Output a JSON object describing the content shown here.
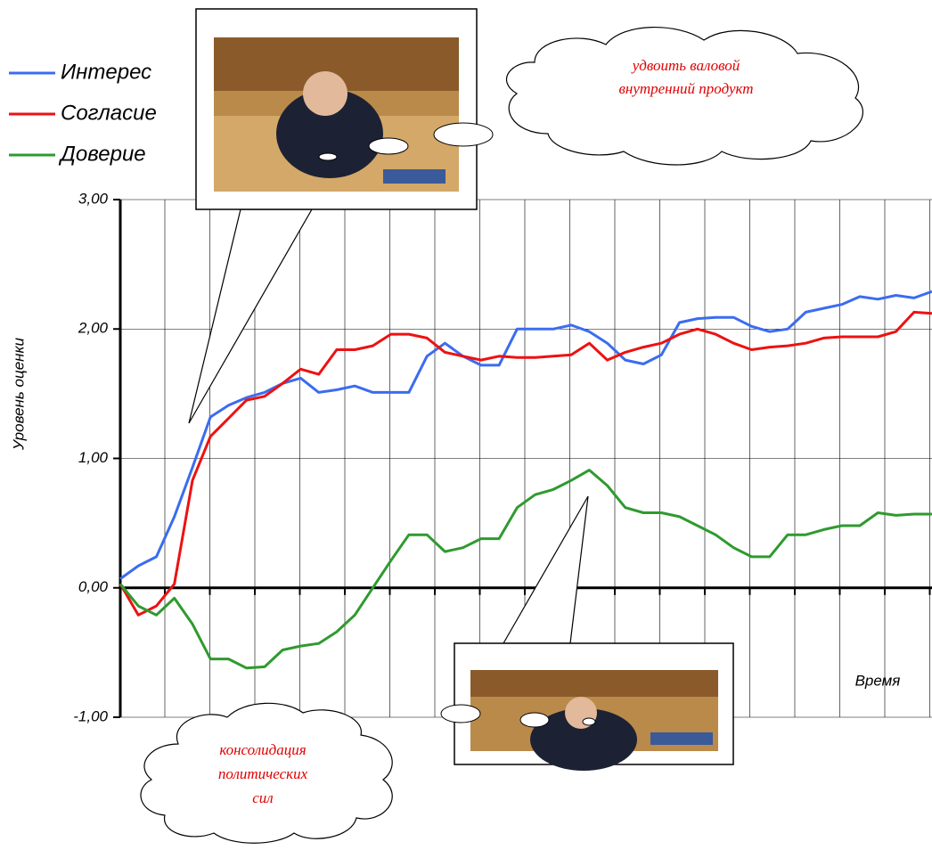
{
  "chart_data": {
    "type": "line",
    "y_label": "Уровень оценки",
    "x_label": "Время",
    "ylim": [
      -1,
      3
    ],
    "yticks": [
      {
        "value": -1,
        "label": "-1,00"
      },
      {
        "value": 0,
        "label": "0,00"
      },
      {
        "value": 1,
        "label": "1,00"
      },
      {
        "value": 2,
        "label": "2,00"
      },
      {
        "value": 3,
        "label": "3,00"
      }
    ],
    "grid": true,
    "legend": "top-left",
    "series": [
      {
        "name": "Интерес",
        "color": "#3b6cf0",
        "values": [
          0.07,
          0.17,
          0.24,
          0.55,
          0.93,
          1.32,
          1.41,
          1.47,
          1.51,
          1.58,
          1.62,
          1.51,
          1.53,
          1.56,
          1.51,
          1.51,
          1.51,
          1.79,
          1.89,
          1.79,
          1.72,
          1.72,
          2.0,
          2.0,
          2.0,
          2.03,
          1.98,
          1.89,
          1.76,
          1.73,
          1.8,
          2.05,
          2.08,
          2.09,
          2.09,
          2.02,
          1.98,
          2.0,
          2.13,
          2.16,
          2.19,
          2.25,
          2.23,
          2.26,
          2.24,
          2.29
        ]
      },
      {
        "name": "Согласие",
        "color": "#ee1111",
        "values": [
          0.03,
          -0.21,
          -0.14,
          0.03,
          0.83,
          1.17,
          1.31,
          1.45,
          1.48,
          1.58,
          1.69,
          1.65,
          1.84,
          1.84,
          1.87,
          1.96,
          1.96,
          1.93,
          1.82,
          1.79,
          1.76,
          1.79,
          1.78,
          1.78,
          1.79,
          1.8,
          1.89,
          1.76,
          1.82,
          1.86,
          1.89,
          1.96,
          2.0,
          1.96,
          1.89,
          1.84,
          1.86,
          1.87,
          1.89,
          1.93,
          1.94,
          1.94,
          1.94,
          1.98,
          2.13,
          2.12
        ]
      },
      {
        "name": "Доверие",
        "color": "#2f9a2f",
        "values": [
          0.03,
          -0.14,
          -0.21,
          -0.08,
          -0.28,
          -0.55,
          -0.55,
          -0.62,
          -0.61,
          -0.48,
          -0.45,
          -0.43,
          -0.34,
          -0.21,
          0.0,
          0.21,
          0.41,
          0.41,
          0.28,
          0.31,
          0.38,
          0.38,
          0.62,
          0.72,
          0.76,
          0.83,
          0.91,
          0.79,
          0.62,
          0.58,
          0.58,
          0.55,
          0.48,
          0.41,
          0.31,
          0.24,
          0.24,
          0.41,
          0.41,
          0.45,
          0.48,
          0.48,
          0.58,
          0.56,
          0.57,
          0.57
        ]
      }
    ],
    "annotations": [
      {
        "lines": [
          "удвоить валовой",
          "внутренний продукт"
        ]
      },
      {
        "lines": [
          "консолидация",
          "политических",
          "сил"
        ]
      }
    ]
  }
}
